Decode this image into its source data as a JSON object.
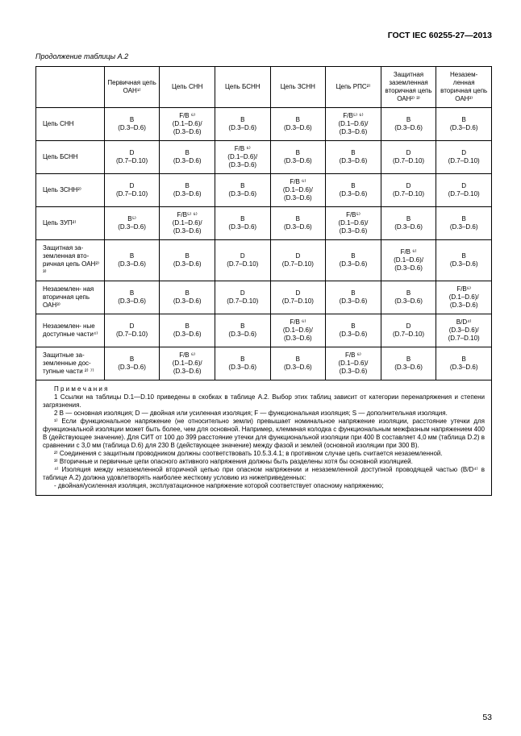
{
  "doc": {
    "standard_id": "ГОСТ IEC 60255-27—2013",
    "caption": "Продолжение таблицы А.2",
    "page_number": "53"
  },
  "table": {
    "columns": [
      "Первичная цепь ОАН¹⁾",
      "Цепь СНН",
      "Цепь БСНН",
      "Цепь ЗСНН",
      "Цепь РПС²⁾",
      "Защитная заземленная вторичная цепь ОАН²⁾ ³⁾",
      "Незазем- ленная вторичная цепь ОАН³⁾"
    ],
    "rows": [
      {
        "label_html": "Цепь СНН",
        "cells": [
          "B\n(D.3–D.6)",
          "F/B ⁶⁾\n(D.1–D.6)/\n(D.3–D.6)",
          "B\n(D.3–D.6)",
          "B\n(D.3–D.6)",
          "F/B⁵⁾ ⁶⁾\n(D.1–D.6)/\n(D.3–D.6)",
          "B\n(D.3–D.6)",
          "B\n(D.3–D.6)"
        ]
      },
      {
        "label_html": "Цепь БСНН",
        "cells": [
          "D\n(D.7–D.10)",
          "B\n(D.3–D.6)",
          "F/B ⁶⁾\n(D.1–D.6)/\n(D.3–D.6)",
          "B\n(D.3–D.6)",
          "B\n(D.3–D.6)",
          "D\n(D.7–D.10)",
          "D\n(D.7–D.10)"
        ]
      },
      {
        "label_html": "Цепь ЗСНН²⁾",
        "cells": [
          "D\n(D.7–D.10)",
          "B\n(D.3–D.6)",
          "B\n(D.3–D.6)",
          "F/B ⁶⁾\n(D.1–D.6)/\n(D.3–D.6)",
          "B\n(D.3–D.6)",
          "D\n(D.7–D.10)",
          "D\n(D.7–D.10)"
        ]
      },
      {
        "label_html": "Цепь ЗУП²⁾",
        "cells": [
          "B⁵⁾\n(D.3–D.6)",
          "F/B⁵⁾ ⁶⁾\n(D.1–D.6)/\n(D.3–D.6)",
          "B\n(D.3–D.6)",
          "B\n(D.3–D.6)",
          "F/B⁵⁾\n(D.1–D.6)/\n(D.3–D.6)",
          "B\n(D.3–D.6)",
          "B\n(D.3–D.6)"
        ]
      },
      {
        "label_html": "Защитная за- земленная вто- ричная цепь ОАН²⁾ ³⁾",
        "cells": [
          "B\n(D.3–D.6)",
          "B\n(D.3–D.6)",
          "D\n(D.7–D.10)",
          "D\n(D.7–D.10)",
          "B\n(D.3–D.6)",
          "F/B ⁶⁾\n(D.1–D.6)/\n(D.3–D.6)",
          "B\n(D.3–D.6)"
        ]
      },
      {
        "label_html": "Незаземлен- ная вторичная цепь ОАН³⁾",
        "cells": [
          "B\n(D.3–D.6)",
          "B\n(D.3–D.6)",
          "D\n(D.7–D.10)",
          "D\n(D.7–D.10)",
          "B\n(D.3–D.6)",
          "B\n(D.3–D.6)",
          "F/B⁶⁾\n(D.1–D.6)/\n(D.3–D.6)"
        ]
      },
      {
        "label_html": "Незаземлен- ные доступные части⁴⁾",
        "cells": [
          "D\n(D.7–D.10)",
          "B\n(D.3–D.6)",
          "B\n(D.3–D.6)",
          "F/B ⁶⁾\n(D.1–D.6)/\n(D.3–D.6)",
          "B\n(D.3–D.6)",
          "D\n(D.7–D.10)",
          "B/D⁴⁾\n(D.3–D.6)/\n(D.7–D.10)"
        ]
      },
      {
        "label_html": "Защитные за- земленные дос- тупные части ²⁾ ⁷⁾",
        "cells": [
          "B\n(D.3–D.6)",
          "F/B ⁶⁾\n(D.1–D.6)/\n(D.3–D.6)",
          "B\n(D.3–D.6)",
          "B\n(D.3–D.6)",
          "F/B ⁶⁾\n(D.1–D.6)/\n(D.3–D.6)",
          "B\n(D.3–D.6)",
          "B\n(D.3–D.6)"
        ]
      }
    ]
  },
  "notes": {
    "heading": "П р и м е ч а н и я",
    "n1": "1 Ссылки на таблицы D.1—D.10 приведены в скобках в таблице А.2. Выбор этих таблиц зависит от категории перенапряжения и степени загрязнения.",
    "n2": "2 В — основная изоляция; D — двойная или усиленная изоляция; F — функциональная изоляция; S — дополнительная изоляция.",
    "f1": "¹⁾ Если функциональное напряжение (не относительно земли) превышает номинальное напряжение изоляции, расстояние утечки для функциональной изоляции может быть более, чем для основной. Например, клеммная колодка с функциональным межфазным напряжением 400 В (действующее значение). Для СИТ от 100 до 399 расстояние утечки для функциональной изоляции при 400 В составляет 4,0 мм (таблица D.2) в сравнении с 3,0 мм (таблица D.6) для 230 В (действующее значение) между фазой и землей (основной изоляции при 300 В).",
    "f2": "²⁾ Соединения с защитным проводником должны соответствовать 10.5.3.4.1; в противном случае цепь считается незаземленной.",
    "f3": "³⁾ Вторичные и первичные цепи опасного активного напряжения должны быть разделены хотя бы основной изоляцией.",
    "f4": "⁴⁾ Изоляция между незаземленной вторичной цепью при опасном напряжении и незаземленной доступной проводящей частью (B/D⁴⁾ в таблице А.2) должна удовлетворять наиболее жесткому условию из нижеприведенных:",
    "f4a": "- двойная/усиленная изоляция, эксплуатационное напряжение которой соответствует опасному напряжению;"
  }
}
